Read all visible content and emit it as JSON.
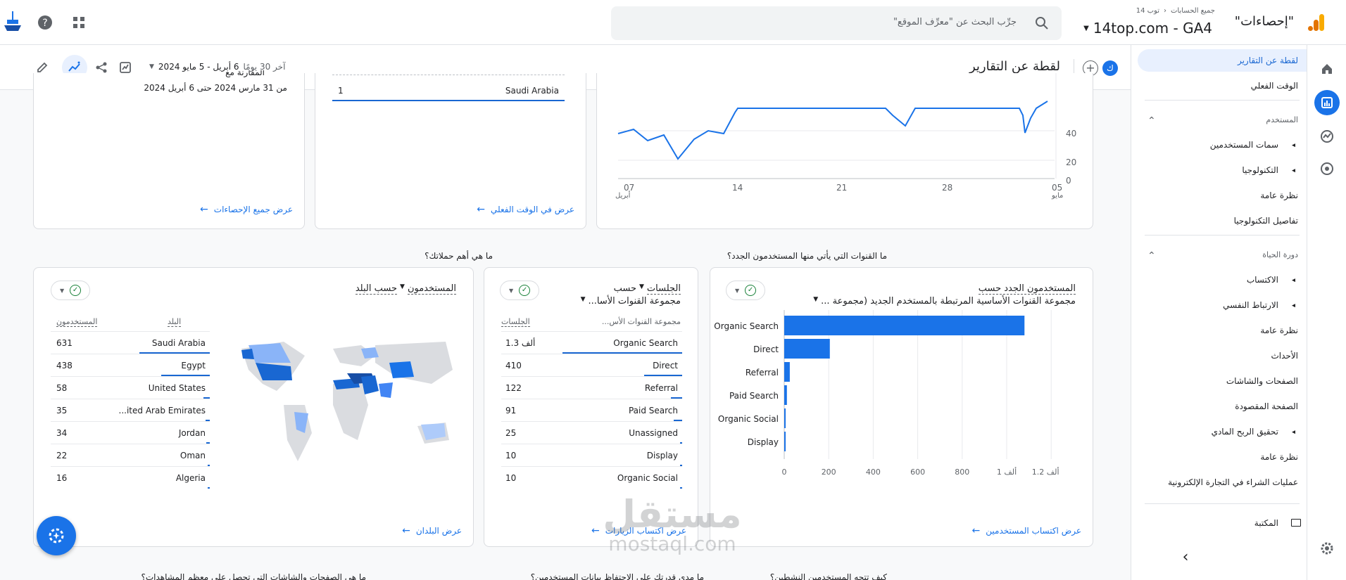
{
  "topbar": {
    "breadcrumb_all": "جميع الحسابات",
    "breadcrumb_acct": "توب 14",
    "property_label": "\"إحصاءات\"",
    "property_name": "14top.com - GA4",
    "search_placeholder": "جرِّب البحث عن \"معرِّف الموقع\""
  },
  "toolbar": {
    "title": "لقطة عن التقارير",
    "avatar_letter": "ك",
    "date_label": "آخر 30 يومًا",
    "date_range": "6 أبريل - 5 مايو 2024"
  },
  "sidenav": {
    "items": [
      {
        "label": "لقطة عن التقارير",
        "type": "sel"
      },
      {
        "label": "الوقت الفعلي",
        "type": "item"
      },
      {
        "label": "المستخدم",
        "type": "section"
      },
      {
        "label": "سمات المستخدمين",
        "type": "group"
      },
      {
        "label": "التكنولوجيا",
        "type": "group"
      },
      {
        "label": "نظرة عامة",
        "type": "sub"
      },
      {
        "label": "تفاصيل التكنولوجيا",
        "type": "sub"
      },
      {
        "label": "دورة الحياة",
        "type": "section"
      },
      {
        "label": "الاكتساب",
        "type": "group"
      },
      {
        "label": "الارتباط النفسي",
        "type": "group"
      },
      {
        "label": "نظرة عامة",
        "type": "sub"
      },
      {
        "label": "الأحداث",
        "type": "sub"
      },
      {
        "label": "الصفحات والشاشات",
        "type": "sub"
      },
      {
        "label": "الصفحة المقصودة",
        "type": "sub"
      },
      {
        "label": "تحقيق الربح المادي",
        "type": "group"
      },
      {
        "label": "نظرة عامة",
        "type": "sub"
      },
      {
        "label": "عمليات الشراء في التجارة الإلكترونية",
        "type": "sub"
      },
      {
        "label": "المكتبة",
        "type": "lib"
      }
    ]
  },
  "top_cards": {
    "card1_partial": "المقارنة مع",
    "card1_range": "من 31 مارس 2024 حتى 6 أبريل 2024",
    "card1_link": "عرض جميع الإحصاءات",
    "card2_country": "Saudi Arabia",
    "card2_value": "1",
    "card2_link": "عرض في الوقت الفعلي",
    "y_ticks": [
      "40",
      "20",
      "0"
    ],
    "x_ticks": [
      "07",
      "14",
      "21",
      "28",
      "05"
    ],
    "x_sub_first": "أبريل",
    "x_sub_last": "مايو"
  },
  "section_titles": {
    "channels_q": "ما القنوات التي يأتي منها المستخدمون الجدد؟",
    "campaigns_q": "ما هي أهم حملاتك؟"
  },
  "card_channels": {
    "title_line1": "المستخدمون الجدد حسب",
    "title_line2": "مجموعة القنوات الأساسية المرتبطة بالمستخدم الجديد (مجموعة ...",
    "link": "عرض اكتساب المستخدمين",
    "x_ticks": [
      "0",
      "200",
      "400",
      "600",
      "800",
      "1 ألف",
      "1.2 ألف"
    ]
  },
  "chart_data": {
    "type": "bar",
    "orientation": "horizontal",
    "title": "المستخدمون الجدد حسب مجموعة القنوات الأساسية المرتبطة بالمستخدم الجديد (مجموعة ...",
    "categories": [
      "Organic Search",
      "Direct",
      "Referral",
      "Paid Search",
      "Organic Social",
      "Display"
    ],
    "values": [
      1080,
      205,
      25,
      12,
      4,
      3
    ],
    "xlim": [
      0,
      1250
    ]
  },
  "card_sessions": {
    "title_line1": "الجلسات",
    "title_by": "حسب",
    "title_line2": "مجموعة القنوات الأسا...",
    "col1": "مجموعة القنوات الأس...",
    "col2": "الجلسات",
    "link": "عرض اكتساب الزيارات",
    "rows": [
      {
        "name": "Organic Search",
        "value": "1.3 ألف"
      },
      {
        "name": "Direct",
        "value": "410"
      },
      {
        "name": "Referral",
        "value": "122"
      },
      {
        "name": "Paid Search",
        "value": "91"
      },
      {
        "name": "Unassigned",
        "value": "25"
      },
      {
        "name": "Display",
        "value": "10"
      },
      {
        "name": "Organic Social",
        "value": "10"
      }
    ]
  },
  "card_countries": {
    "title": "المستخدمون",
    "title_by": "حسب البلد",
    "col1": "البلد",
    "col2": "المستخدمون",
    "link": "عرض البلدان",
    "rows": [
      {
        "name": "Saudi Arabia",
        "value": "631"
      },
      {
        "name": "Egypt",
        "value": "438"
      },
      {
        "name": "United States",
        "value": "58"
      },
      {
        "name": "...ited Arab Emirates",
        "value": "35"
      },
      {
        "name": "Jordan",
        "value": "34"
      },
      {
        "name": "Oman",
        "value": "22"
      },
      {
        "name": "Algeria",
        "value": "16"
      }
    ]
  },
  "bottom_titles": [
    "كيف تتجه المستخدمين النشطين؟",
    "ما مدى قدرتك على الاحتفاظ بيانات المستخدمين؟",
    "ما هي الصفحات والشاشات التي تحصل على معظم المشاهدات؟"
  ],
  "watermark": {
    "arabic": "مستقل",
    "latin": "mostaql.com"
  },
  "colors": {
    "accent": "#1a73e8",
    "orange": "#f9ab00",
    "dark_blue": "#1967d2"
  }
}
